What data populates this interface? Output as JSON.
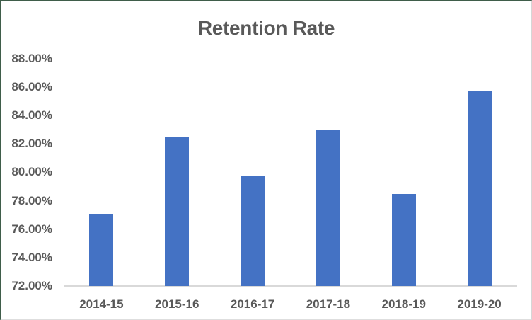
{
  "window": {
    "frame_border_color": "#3F5D4A",
    "frame_edge_color": "#D6D6D6"
  },
  "chart_data": {
    "type": "bar",
    "title": "Retention Rate",
    "categories": [
      "2014-15",
      "2015-16",
      "2016-17",
      "2017-18",
      "2018-19",
      "2019-20"
    ],
    "series": [
      {
        "name": "Retention Rate",
        "values": [
          77.1,
          82.45,
          79.7,
          82.95,
          78.45,
          85.7
        ]
      }
    ],
    "unit": "%",
    "xlabel": "",
    "ylabel": "",
    "ylim": [
      72,
      88
    ],
    "y_tick_values": [
      88,
      86,
      84,
      82,
      80,
      78,
      76,
      74,
      72
    ],
    "y_tick_labels": [
      "88.00%",
      "86.00%",
      "84.00%",
      "82.00%",
      "80.00%",
      "78.00%",
      "76.00%",
      "74.00%",
      "72.00%"
    ],
    "grid": false,
    "legend": false,
    "bar_color": "#4472C4",
    "text_color": "#595959",
    "axis_line_color": "#D9D9D9"
  }
}
